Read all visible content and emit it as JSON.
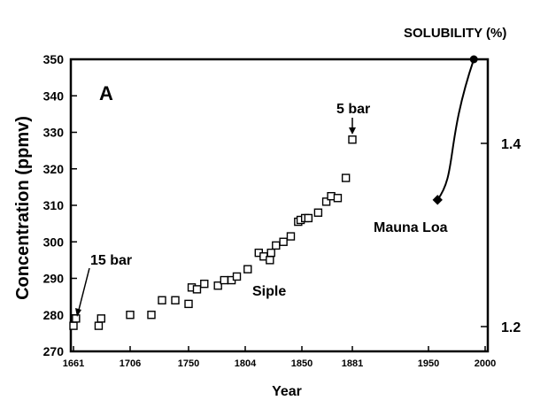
{
  "chart_data": {
    "type": "scatter",
    "panel_label": "A",
    "xlabel": "Year",
    "ylabel": "Concentration (ppmv)",
    "y2label": "SOLUBILITY (%)",
    "x_ticks": [
      "1661",
      "1706",
      "1750",
      "1804",
      "1850",
      "1881",
      "1950",
      "2000"
    ],
    "ylim": [
      270,
      350
    ],
    "y_ticks": [
      270,
      280,
      290,
      300,
      310,
      320,
      330,
      340,
      350
    ],
    "y2_ticks": [
      "1.4",
      "1.2"
    ],
    "grid": false,
    "series": [
      {
        "name": "Siple",
        "points": [
          {
            "x": 1661,
            "y": 277
          },
          {
            "x": 1663,
            "y": 279
          },
          {
            "x": 1681,
            "y": 277
          },
          {
            "x": 1683,
            "y": 279
          },
          {
            "x": 1706,
            "y": 280
          },
          {
            "x": 1722,
            "y": 280
          },
          {
            "x": 1730,
            "y": 284
          },
          {
            "x": 1740,
            "y": 284
          },
          {
            "x": 1750,
            "y": 283
          },
          {
            "x": 1753,
            "y": 287.5
          },
          {
            "x": 1758,
            "y": 287
          },
          {
            "x": 1765,
            "y": 288.5
          },
          {
            "x": 1778,
            "y": 288
          },
          {
            "x": 1784,
            "y": 289.5
          },
          {
            "x": 1791,
            "y": 289.5
          },
          {
            "x": 1796,
            "y": 290.5
          },
          {
            "x": 1806,
            "y": 292.5
          },
          {
            "x": 1815,
            "y": 297
          },
          {
            "x": 1819,
            "y": 296
          },
          {
            "x": 1824,
            "y": 295
          },
          {
            "x": 1825,
            "y": 297
          },
          {
            "x": 1829,
            "y": 299
          },
          {
            "x": 1835,
            "y": 300
          },
          {
            "x": 1841,
            "y": 301.5
          },
          {
            "x": 1847,
            "y": 305.5
          },
          {
            "x": 1849,
            "y": 306
          },
          {
            "x": 1852,
            "y": 306.5
          },
          {
            "x": 1854,
            "y": 306.5
          },
          {
            "x": 1860,
            "y": 308
          },
          {
            "x": 1865,
            "y": 311
          },
          {
            "x": 1868,
            "y": 312.5
          },
          {
            "x": 1872,
            "y": 312
          },
          {
            "x": 1877,
            "y": 317.5
          },
          {
            "x": 1881,
            "y": 328
          }
        ]
      },
      {
        "name": "Mauna Loa",
        "points": [
          {
            "x": 1958,
            "y": 311.5
          },
          {
            "x": 1990,
            "y": 350
          }
        ]
      }
    ],
    "annotations": [
      "15 bar",
      "5 bar",
      "Siple",
      "Mauna Loa"
    ]
  }
}
